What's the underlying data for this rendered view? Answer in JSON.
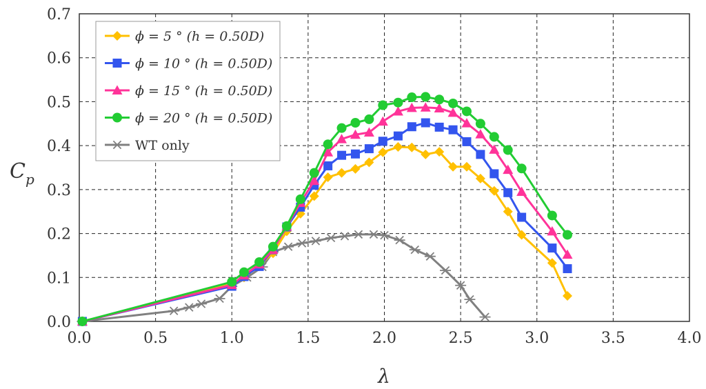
{
  "chart_data": {
    "type": "line",
    "xlabel": "λ",
    "ylabel": {
      "main": "C",
      "sub": "p"
    },
    "xlim": [
      0.0,
      4.0
    ],
    "ylim": [
      0.0,
      0.7
    ],
    "xticks": [
      "0.0",
      "0.5",
      "1.0",
      "1.5",
      "2.0",
      "2.5",
      "3.0",
      "3.5",
      "4.0"
    ],
    "yticks": [
      "0.0",
      "0.1",
      "0.2",
      "0.3",
      "0.4",
      "0.5",
      "0.6",
      "0.7"
    ],
    "grid": true,
    "legend_position": "top-left",
    "series": [
      {
        "name": "ϕ = 5 ° (h = 0.50D)",
        "color": "#FFC000",
        "marker": "diamond",
        "x": [
          0.02,
          1.0,
          1.08,
          1.18,
          1.27,
          1.36,
          1.45,
          1.54,
          1.63,
          1.72,
          1.81,
          1.9,
          1.99,
          2.09,
          2.18,
          2.27,
          2.36,
          2.45,
          2.54,
          2.63,
          2.72,
          2.81,
          2.9,
          3.1,
          3.2
        ],
        "y": [
          0.0,
          0.085,
          0.1,
          0.128,
          0.155,
          0.205,
          0.245,
          0.285,
          0.328,
          0.338,
          0.347,
          0.362,
          0.385,
          0.397,
          0.396,
          0.38,
          0.386,
          0.352,
          0.352,
          0.325,
          0.297,
          0.25,
          0.197,
          0.133,
          0.058
        ]
      },
      {
        "name": "ϕ = 10 ° (h = 0.50D)",
        "color": "#3355EE",
        "marker": "square",
        "x": [
          0.02,
          1.0,
          1.08,
          1.18,
          1.27,
          1.36,
          1.45,
          1.54,
          1.63,
          1.72,
          1.81,
          1.9,
          1.99,
          2.09,
          2.18,
          2.27,
          2.36,
          2.45,
          2.54,
          2.63,
          2.72,
          2.81,
          2.9,
          3.1,
          3.2
        ],
        "y": [
          0.0,
          0.08,
          0.102,
          0.125,
          0.163,
          0.215,
          0.26,
          0.31,
          0.354,
          0.378,
          0.381,
          0.393,
          0.41,
          0.422,
          0.443,
          0.452,
          0.442,
          0.436,
          0.409,
          0.38,
          0.336,
          0.293,
          0.237,
          0.167,
          0.12
        ]
      },
      {
        "name": "ϕ = 15 ° (h = 0.50D)",
        "color": "#FF3399",
        "marker": "triangle",
        "x": [
          0.02,
          1.0,
          1.08,
          1.18,
          1.27,
          1.36,
          1.45,
          1.54,
          1.63,
          1.72,
          1.81,
          1.9,
          1.99,
          2.09,
          2.18,
          2.27,
          2.36,
          2.45,
          2.54,
          2.63,
          2.72,
          2.81,
          2.9,
          3.1,
          3.2
        ],
        "y": [
          0.0,
          0.083,
          0.105,
          0.13,
          0.163,
          0.216,
          0.27,
          0.32,
          0.385,
          0.415,
          0.425,
          0.43,
          0.455,
          0.478,
          0.486,
          0.487,
          0.485,
          0.475,
          0.451,
          0.426,
          0.391,
          0.345,
          0.295,
          0.205,
          0.152
        ]
      },
      {
        "name": "ϕ = 20 ° (h = 0.50D)",
        "color": "#22CC33",
        "marker": "circle",
        "x": [
          0.02,
          1.0,
          1.08,
          1.18,
          1.27,
          1.36,
          1.45,
          1.54,
          1.63,
          1.72,
          1.81,
          1.9,
          1.99,
          2.09,
          2.18,
          2.27,
          2.36,
          2.45,
          2.54,
          2.63,
          2.72,
          2.81,
          2.9,
          3.1,
          3.2
        ],
        "y": [
          0.0,
          0.09,
          0.112,
          0.135,
          0.17,
          0.217,
          0.278,
          0.338,
          0.403,
          0.44,
          0.452,
          0.46,
          0.492,
          0.498,
          0.51,
          0.511,
          0.505,
          0.496,
          0.478,
          0.45,
          0.42,
          0.39,
          0.348,
          0.241,
          0.197
        ]
      },
      {
        "name": "WT only",
        "color": "#808080",
        "marker": "asterisk",
        "x": [
          0.02,
          0.62,
          0.72,
          0.8,
          0.92,
          1.0,
          1.1,
          1.2,
          1.27,
          1.37,
          1.46,
          1.55,
          1.65,
          1.74,
          1.83,
          1.93,
          2.0,
          2.1,
          2.2,
          2.3,
          2.4,
          2.5,
          2.56,
          2.66
        ],
        "y": [
          0.0,
          0.024,
          0.032,
          0.04,
          0.052,
          0.08,
          0.1,
          0.124,
          0.158,
          0.17,
          0.178,
          0.183,
          0.19,
          0.194,
          0.198,
          0.198,
          0.196,
          0.185,
          0.163,
          0.148,
          0.116,
          0.082,
          0.05,
          0.01
        ]
      }
    ]
  }
}
